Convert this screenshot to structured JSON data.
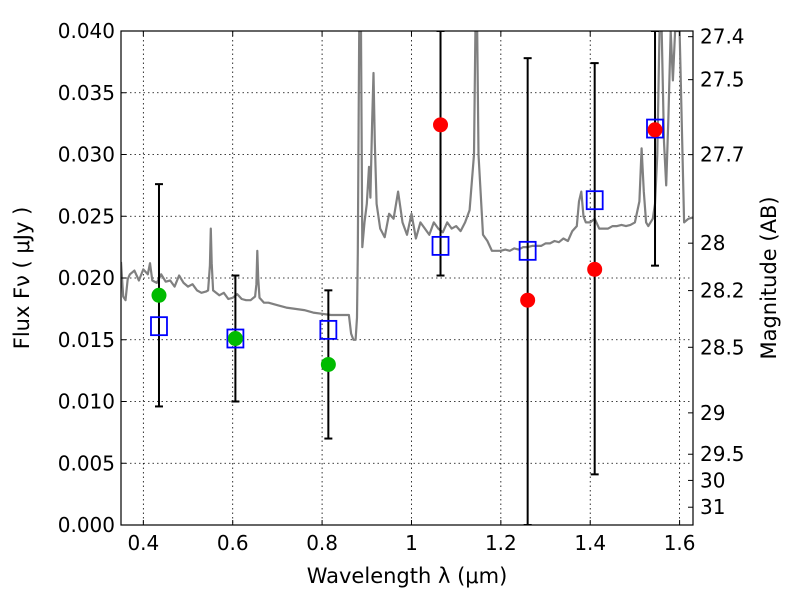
{
  "chart_data": {
    "type": "scatter",
    "xlabel": "Wavelength  λ (μm)",
    "ylabel": "Flux  Fν  ( μJy )",
    "ylabel_right": "Magnitude (AB)",
    "xlim": [
      0.35,
      1.63
    ],
    "ylim": [
      0.0,
      0.04
    ],
    "grid": true,
    "x_ticks": [
      {
        "value": 0.4,
        "label": "0.4"
      },
      {
        "value": 0.6,
        "label": "0.6"
      },
      {
        "value": 0.8,
        "label": "0.8"
      },
      {
        "value": 1.0,
        "label": "1"
      },
      {
        "value": 1.2,
        "label": "1.2"
      },
      {
        "value": 1.4,
        "label": "1.4"
      },
      {
        "value": 1.6,
        "label": "1.6"
      }
    ],
    "y_ticks": [
      {
        "value": 0.0,
        "label": "0.000"
      },
      {
        "value": 0.005,
        "label": "0.005"
      },
      {
        "value": 0.01,
        "label": "0.010"
      },
      {
        "value": 0.015,
        "label": "0.015"
      },
      {
        "value": 0.02,
        "label": "0.020"
      },
      {
        "value": 0.025,
        "label": "0.025"
      },
      {
        "value": 0.03,
        "label": "0.030"
      },
      {
        "value": 0.035,
        "label": "0.035"
      },
      {
        "value": 0.04,
        "label": "0.040"
      }
    ],
    "right_ticks": [
      {
        "flux": 0.03954,
        "label": "27.4"
      },
      {
        "flux": 0.03606,
        "label": "27.5"
      },
      {
        "flux": 0.02999,
        "label": "27.7"
      },
      {
        "flux": 0.02282,
        "label": "28"
      },
      {
        "flux": 0.01898,
        "label": "28.2"
      },
      {
        "flux": 0.01439,
        "label": "28.5"
      },
      {
        "flux": 0.00908,
        "label": "29"
      },
      {
        "flux": 0.00573,
        "label": "29.5"
      },
      {
        "flux": 0.00361,
        "label": "30"
      },
      {
        "flux": 0.00144,
        "label": "31"
      }
    ],
    "series": [
      {
        "kind": "observed",
        "color": "#00bb00",
        "marker": "circle",
        "points": [
          {
            "x": 0.435,
            "y": 0.0186
          },
          {
            "x": 0.606,
            "y": 0.0151
          },
          {
            "x": 0.814,
            "y": 0.013
          }
        ]
      },
      {
        "kind": "observed",
        "color": "#ff0000",
        "marker": "circle",
        "points": [
          {
            "x": 1.065,
            "y": 0.0324
          },
          {
            "x": 1.26,
            "y": 0.0182
          },
          {
            "x": 1.41,
            "y": 0.0207
          },
          {
            "x": 1.545,
            "y": 0.032
          }
        ]
      },
      {
        "kind": "model-photometry",
        "color": "#0000ff",
        "marker": "open-square",
        "points": [
          {
            "x": 0.435,
            "y": 0.0161
          },
          {
            "x": 0.606,
            "y": 0.0151
          },
          {
            "x": 0.814,
            "y": 0.0158
          },
          {
            "x": 1.065,
            "y": 0.0226
          },
          {
            "x": 1.26,
            "y": 0.0222
          },
          {
            "x": 1.41,
            "y": 0.0263
          },
          {
            "x": 1.545,
            "y": 0.0321
          }
        ]
      }
    ],
    "error_bars": [
      {
        "x": 0.435,
        "low": 0.0096,
        "high": 0.0276
      },
      {
        "x": 0.606,
        "low": 0.01,
        "high": 0.0202
      },
      {
        "x": 0.814,
        "low": 0.007,
        "high": 0.019
      },
      {
        "x": 1.065,
        "low": 0.0202,
        "high": 0.04
      },
      {
        "x": 1.26,
        "low": 0.0,
        "high": 0.0378
      },
      {
        "x": 1.41,
        "low": 0.0041,
        "high": 0.0374
      },
      {
        "x": 1.545,
        "low": 0.021,
        "high": 0.04
      }
    ],
    "spectrum": {
      "color": "#808080",
      "points": [
        [
          0.35,
          0.0213
        ],
        [
          0.355,
          0.0185
        ],
        [
          0.36,
          0.0182
        ],
        [
          0.365,
          0.0199
        ],
        [
          0.37,
          0.0203
        ],
        [
          0.38,
          0.0206
        ],
        [
          0.39,
          0.0198
        ],
        [
          0.4,
          0.0207
        ],
        [
          0.41,
          0.0203
        ],
        [
          0.415,
          0.0212
        ],
        [
          0.42,
          0.0198
        ],
        [
          0.43,
          0.0196
        ],
        [
          0.44,
          0.0203
        ],
        [
          0.45,
          0.0197
        ],
        [
          0.46,
          0.0198
        ],
        [
          0.47,
          0.0193
        ],
        [
          0.48,
          0.0202
        ],
        [
          0.49,
          0.0196
        ],
        [
          0.5,
          0.0193
        ],
        [
          0.51,
          0.0195
        ],
        [
          0.52,
          0.019
        ],
        [
          0.53,
          0.0188
        ],
        [
          0.54,
          0.0189
        ],
        [
          0.545,
          0.019
        ],
        [
          0.549,
          0.021
        ],
        [
          0.551,
          0.024
        ],
        [
          0.553,
          0.0212
        ],
        [
          0.556,
          0.019
        ],
        [
          0.57,
          0.0186
        ],
        [
          0.58,
          0.0188
        ],
        [
          0.59,
          0.0183
        ],
        [
          0.6,
          0.0184
        ],
        [
          0.61,
          0.0187
        ],
        [
          0.62,
          0.0183
        ],
        [
          0.63,
          0.0182
        ],
        [
          0.64,
          0.0182
        ],
        [
          0.65,
          0.0185
        ],
        [
          0.653,
          0.0195
        ],
        [
          0.655,
          0.0222
        ],
        [
          0.657,
          0.02
        ],
        [
          0.66,
          0.0184
        ],
        [
          0.67,
          0.018
        ],
        [
          0.68,
          0.018
        ],
        [
          0.7,
          0.0178
        ],
        [
          0.72,
          0.0176
        ],
        [
          0.74,
          0.0175
        ],
        [
          0.76,
          0.0174
        ],
        [
          0.78,
          0.0172
        ],
        [
          0.8,
          0.0171
        ],
        [
          0.82,
          0.017
        ],
        [
          0.84,
          0.017
        ],
        [
          0.86,
          0.017
        ],
        [
          0.865,
          0.0155
        ],
        [
          0.87,
          0.015
        ],
        [
          0.875,
          0.015
        ],
        [
          0.878,
          0.0168
        ],
        [
          0.88,
          0.022
        ],
        [
          0.883,
          0.04
        ],
        [
          0.887,
          0.04
        ],
        [
          0.89,
          0.0225
        ],
        [
          0.895,
          0.0245
        ],
        [
          0.9,
          0.026
        ],
        [
          0.905,
          0.029
        ],
        [
          0.908,
          0.0265
        ],
        [
          0.912,
          0.0325
        ],
        [
          0.915,
          0.0366
        ],
        [
          0.918,
          0.031
        ],
        [
          0.922,
          0.026
        ],
        [
          0.93,
          0.024
        ],
        [
          0.94,
          0.0233
        ],
        [
          0.95,
          0.0252
        ],
        [
          0.96,
          0.0248
        ],
        [
          0.97,
          0.027
        ],
        [
          0.98,
          0.0245
        ],
        [
          0.99,
          0.0235
        ],
        [
          1.0,
          0.0252
        ],
        [
          1.01,
          0.0232
        ],
        [
          1.02,
          0.0245
        ],
        [
          1.03,
          0.024
        ],
        [
          1.04,
          0.0235
        ],
        [
          1.05,
          0.0245
        ],
        [
          1.06,
          0.024
        ],
        [
          1.07,
          0.0237
        ],
        [
          1.08,
          0.0245
        ],
        [
          1.09,
          0.024
        ],
        [
          1.1,
          0.0242
        ],
        [
          1.11,
          0.0238
        ],
        [
          1.12,
          0.0245
        ],
        [
          1.13,
          0.0255
        ],
        [
          1.14,
          0.03
        ],
        [
          1.143,
          0.04
        ],
        [
          1.147,
          0.04
        ],
        [
          1.15,
          0.03
        ],
        [
          1.16,
          0.0235
        ],
        [
          1.17,
          0.023
        ],
        [
          1.18,
          0.0222
        ],
        [
          1.19,
          0.0222
        ],
        [
          1.2,
          0.0222
        ],
        [
          1.21,
          0.0223
        ],
        [
          1.22,
          0.0222
        ],
        [
          1.23,
          0.0224
        ],
        [
          1.24,
          0.0223
        ],
        [
          1.25,
          0.0225
        ],
        [
          1.26,
          0.0225
        ],
        [
          1.27,
          0.0226
        ],
        [
          1.28,
          0.0226
        ],
        [
          1.29,
          0.0226
        ],
        [
          1.3,
          0.0228
        ],
        [
          1.31,
          0.0228
        ],
        [
          1.32,
          0.023
        ],
        [
          1.33,
          0.0229
        ],
        [
          1.34,
          0.0232
        ],
        [
          1.35,
          0.023
        ],
        [
          1.36,
          0.0238
        ],
        [
          1.37,
          0.0242
        ],
        [
          1.375,
          0.0262
        ],
        [
          1.38,
          0.027
        ],
        [
          1.385,
          0.025
        ],
        [
          1.39,
          0.0245
        ],
        [
          1.4,
          0.0245
        ],
        [
          1.41,
          0.0248
        ],
        [
          1.42,
          0.024
        ],
        [
          1.43,
          0.024
        ],
        [
          1.44,
          0.024
        ],
        [
          1.45,
          0.0242
        ],
        [
          1.46,
          0.0242
        ],
        [
          1.47,
          0.0243
        ],
        [
          1.48,
          0.0242
        ],
        [
          1.49,
          0.0243
        ],
        [
          1.5,
          0.0245
        ],
        [
          1.51,
          0.0262
        ],
        [
          1.515,
          0.0305
        ],
        [
          1.52,
          0.027
        ],
        [
          1.525,
          0.0245
        ],
        [
          1.53,
          0.0242
        ],
        [
          1.54,
          0.0248
        ],
        [
          1.545,
          0.026
        ],
        [
          1.55,
          0.03
        ],
        [
          1.555,
          0.04
        ],
        [
          1.56,
          0.04
        ],
        [
          1.565,
          0.031
        ],
        [
          1.57,
          0.0275
        ],
        [
          1.575,
          0.033
        ],
        [
          1.58,
          0.04
        ],
        [
          1.585,
          0.036
        ],
        [
          1.59,
          0.04
        ],
        [
          1.595,
          0.04
        ],
        [
          1.6,
          0.04
        ],
        [
          1.61,
          0.0245
        ],
        [
          1.62,
          0.0248
        ],
        [
          1.63,
          0.0249
        ]
      ]
    }
  }
}
